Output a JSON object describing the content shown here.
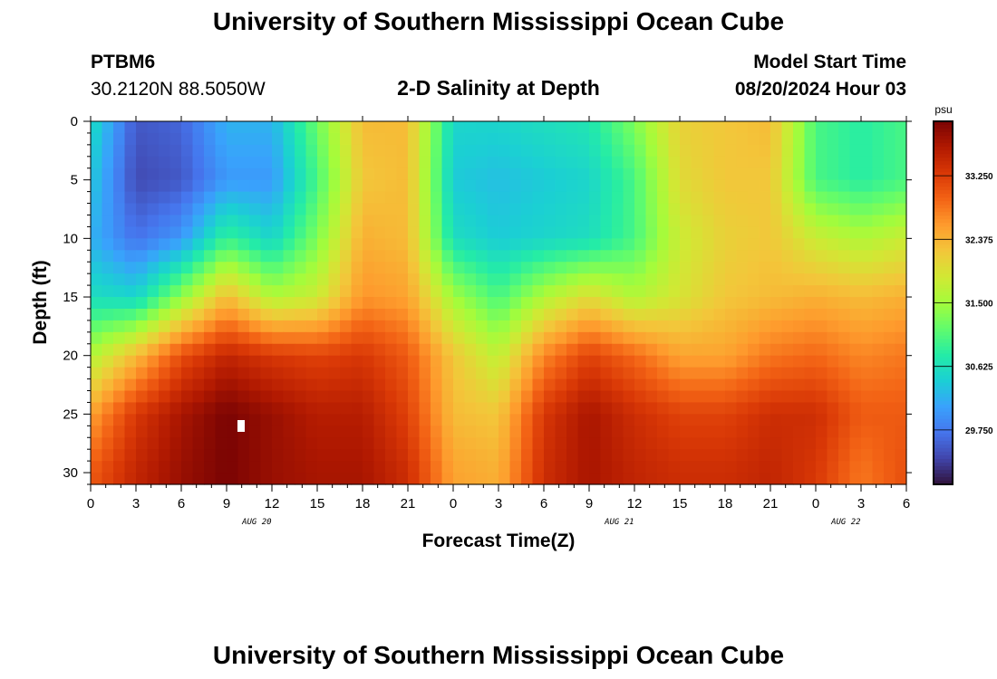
{
  "header": {
    "title": "University of Southern Mississippi Ocean Cube",
    "station": "PTBM6",
    "coords": "30.2120N  88.5050W",
    "subtitle": "2-D Salinity at Depth",
    "start_label": "Model Start Time",
    "start_value": "08/20/2024 Hour 03"
  },
  "footer": {
    "title": "University of Southern Mississippi Ocean Cube"
  },
  "chart_data": {
    "type": "heatmap",
    "xlabel": "Forecast Time(Z)",
    "ylabel": "Depth (ft)",
    "xlim": [
      0,
      54
    ],
    "ylim": [
      0,
      31
    ],
    "x_ticks": [
      "0",
      "3",
      "6",
      "9",
      "12",
      "15",
      "18",
      "21",
      "0",
      "3",
      "6",
      "9",
      "12",
      "15",
      "18",
      "21",
      "0",
      "3",
      "6"
    ],
    "y_ticks": [
      0,
      5,
      10,
      15,
      20,
      25,
      30
    ],
    "date_labels": [
      {
        "text": "AUG 20",
        "hour": 11
      },
      {
        "text": "AUG 21",
        "hour": 35
      },
      {
        "text": "AUG 22",
        "hour": 50
      }
    ],
    "colorbar": {
      "unit": "psu",
      "ticks": [
        "33.250",
        "32.375",
        "31.500",
        "30.625",
        "29.750"
      ],
      "tick_values": [
        33.25,
        32.375,
        31.5,
        30.625,
        29.75
      ],
      "range": [
        29.0,
        34.0
      ],
      "colors": [
        "#30123b",
        "#4145ab",
        "#4675ed",
        "#39a2fc",
        "#1bcfd4",
        "#24eca6",
        "#61fc6c",
        "#a4fc3b",
        "#d1e834",
        "#f3c63a",
        "#fe9b2d",
        "#f36315",
        "#d93806",
        "#b11901",
        "#7a0403"
      ]
    },
    "salinity_grid": {
      "depth_rows_ft": [
        0,
        5,
        10,
        15,
        20,
        25,
        30
      ],
      "hour_cols": [
        0,
        3,
        6,
        9,
        12,
        15,
        18,
        21,
        24,
        27,
        30,
        33,
        36,
        39,
        42,
        45,
        48,
        51,
        54
      ],
      "values": [
        [
          30.6,
          29.5,
          29.6,
          30.2,
          30.2,
          31.2,
          32.3,
          32.3,
          30.5,
          30.5,
          30.6,
          30.7,
          31.3,
          32.1,
          32.2,
          32.3,
          31.0,
          30.8,
          31.0
        ],
        [
          30.4,
          29.4,
          29.5,
          30.0,
          30.0,
          31.0,
          32.2,
          32.3,
          30.4,
          30.3,
          30.4,
          30.5,
          31.0,
          32.0,
          32.2,
          32.2,
          31.0,
          30.8,
          31.0
        ],
        [
          30.2,
          29.7,
          30.0,
          30.9,
          30.5,
          31.3,
          32.4,
          32.3,
          30.6,
          30.4,
          30.5,
          30.6,
          31.0,
          31.8,
          32.1,
          32.2,
          31.8,
          31.6,
          31.8
        ],
        [
          30.6,
          30.5,
          31.4,
          32.3,
          31.6,
          31.8,
          32.6,
          32.5,
          31.5,
          31.0,
          31.6,
          32.0,
          31.6,
          31.9,
          32.2,
          32.3,
          32.4,
          32.3,
          32.4
        ],
        [
          31.6,
          32.3,
          33.1,
          33.5,
          33.3,
          33.2,
          33.3,
          33.0,
          32.2,
          31.7,
          32.7,
          33.2,
          32.9,
          32.5,
          32.5,
          32.8,
          32.9,
          32.7,
          32.8
        ],
        [
          32.5,
          33.3,
          33.7,
          34.0,
          33.8,
          33.6,
          33.6,
          33.2,
          32.3,
          32.2,
          33.3,
          33.7,
          33.4,
          33.2,
          33.2,
          33.4,
          33.4,
          33.0,
          33.0
        ],
        [
          33.0,
          33.5,
          33.8,
          34.0,
          33.8,
          33.7,
          33.7,
          33.4,
          32.5,
          32.4,
          33.4,
          33.7,
          33.5,
          33.4,
          33.4,
          33.5,
          33.3,
          32.8,
          33.1
        ]
      ]
    }
  }
}
